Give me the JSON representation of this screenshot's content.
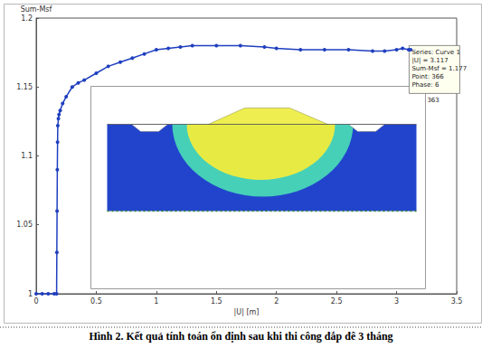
{
  "chart_data": {
    "type": "line",
    "title": "Hình 2. Kết quả tính toán ổn định sau khi thi công đắp đê 3 tháng",
    "x_label": "|U| [m]",
    "y_label": "Sum-Msf",
    "x": [
      0,
      0.05,
      0.1,
      0.15,
      0.17,
      0.172,
      0.174,
      0.176,
      0.178,
      0.18,
      0.185,
      0.19,
      0.2,
      0.22,
      0.25,
      0.3,
      0.35,
      0.4,
      0.5,
      0.6,
      0.7,
      0.8,
      0.9,
      1.0,
      1.1,
      1.2,
      1.3,
      1.5,
      1.7,
      1.9,
      2.0,
      2.2,
      2.4,
      2.6,
      2.8,
      2.9,
      3.0,
      3.05,
      3.1,
      3.117
    ],
    "series": [
      {
        "name": "Curve 1",
        "color": "#1f3fbf",
        "marker": "circle",
        "values": [
          1,
          1,
          1,
          1,
          1,
          1.03,
          1.06,
          1.09,
          1.11,
          1.122,
          1.127,
          1.13,
          1.133,
          1.138,
          1.143,
          1.15,
          1.153,
          1.155,
          1.16,
          1.165,
          1.168,
          1.171,
          1.174,
          1.177,
          1.178,
          1.179,
          1.18,
          1.18,
          1.18,
          1.179,
          1.178,
          1.177,
          1.177,
          1.177,
          1.176,
          1.176,
          1.177,
          1.178,
          1.177,
          1.177
        ]
      }
    ],
    "xlim": [
      0,
      3.5
    ],
    "xticks": [
      0,
      0.5,
      1,
      1.5,
      2,
      2.5,
      3,
      3.5
    ],
    "ylim": [
      1,
      1.2
    ],
    "yticks": [
      1,
      1.05,
      1.1,
      1.15,
      1.2
    ],
    "grid": false,
    "annotations": [
      "Series: Curve 1",
      "|U| = 3.117",
      "Sum-Msf = 1.177",
      "Point: 366",
      "Phase: 6",
      "363"
    ]
  }
}
